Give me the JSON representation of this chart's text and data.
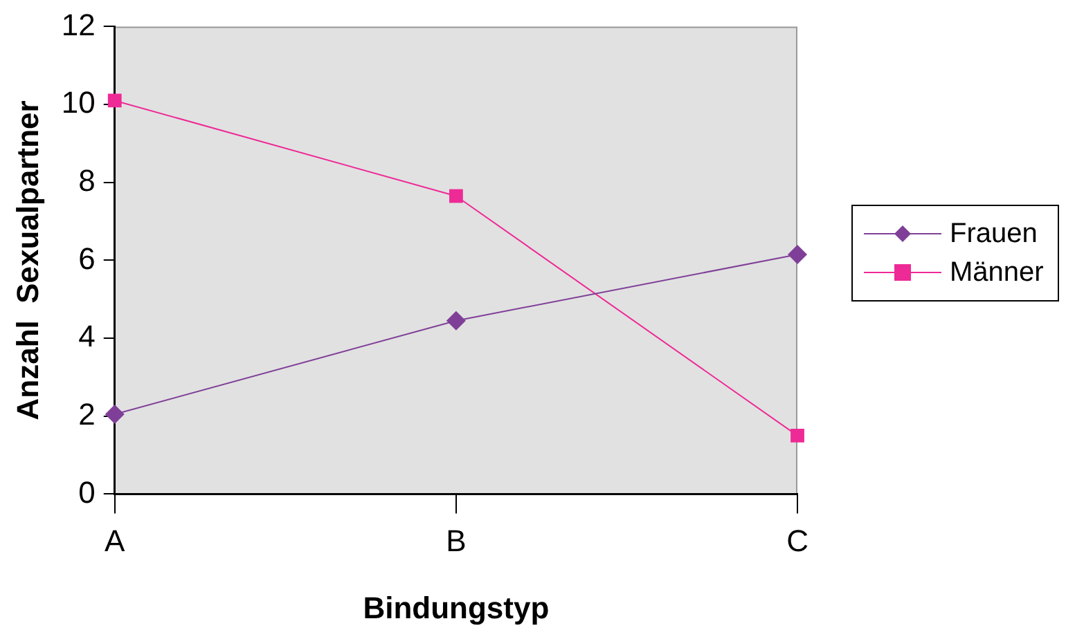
{
  "chart_data": {
    "type": "line",
    "xlabel": "Bindungstyp",
    "ylabel": "Anzahl  Sexualpartner",
    "categories": [
      "A",
      "B",
      "C"
    ],
    "series": [
      {
        "name": "Frauen",
        "color": "#7f3f98",
        "marker": "diamond",
        "values": [
          2.05,
          4.45,
          6.15
        ]
      },
      {
        "name": "Männer",
        "color": "#ee2a96",
        "marker": "square",
        "values": [
          10.1,
          7.65,
          1.5
        ]
      }
    ],
    "ylim": [
      0,
      12
    ],
    "yticks": [
      0,
      2,
      4,
      6,
      8,
      10,
      12
    ],
    "grid": false,
    "legend": "right"
  }
}
